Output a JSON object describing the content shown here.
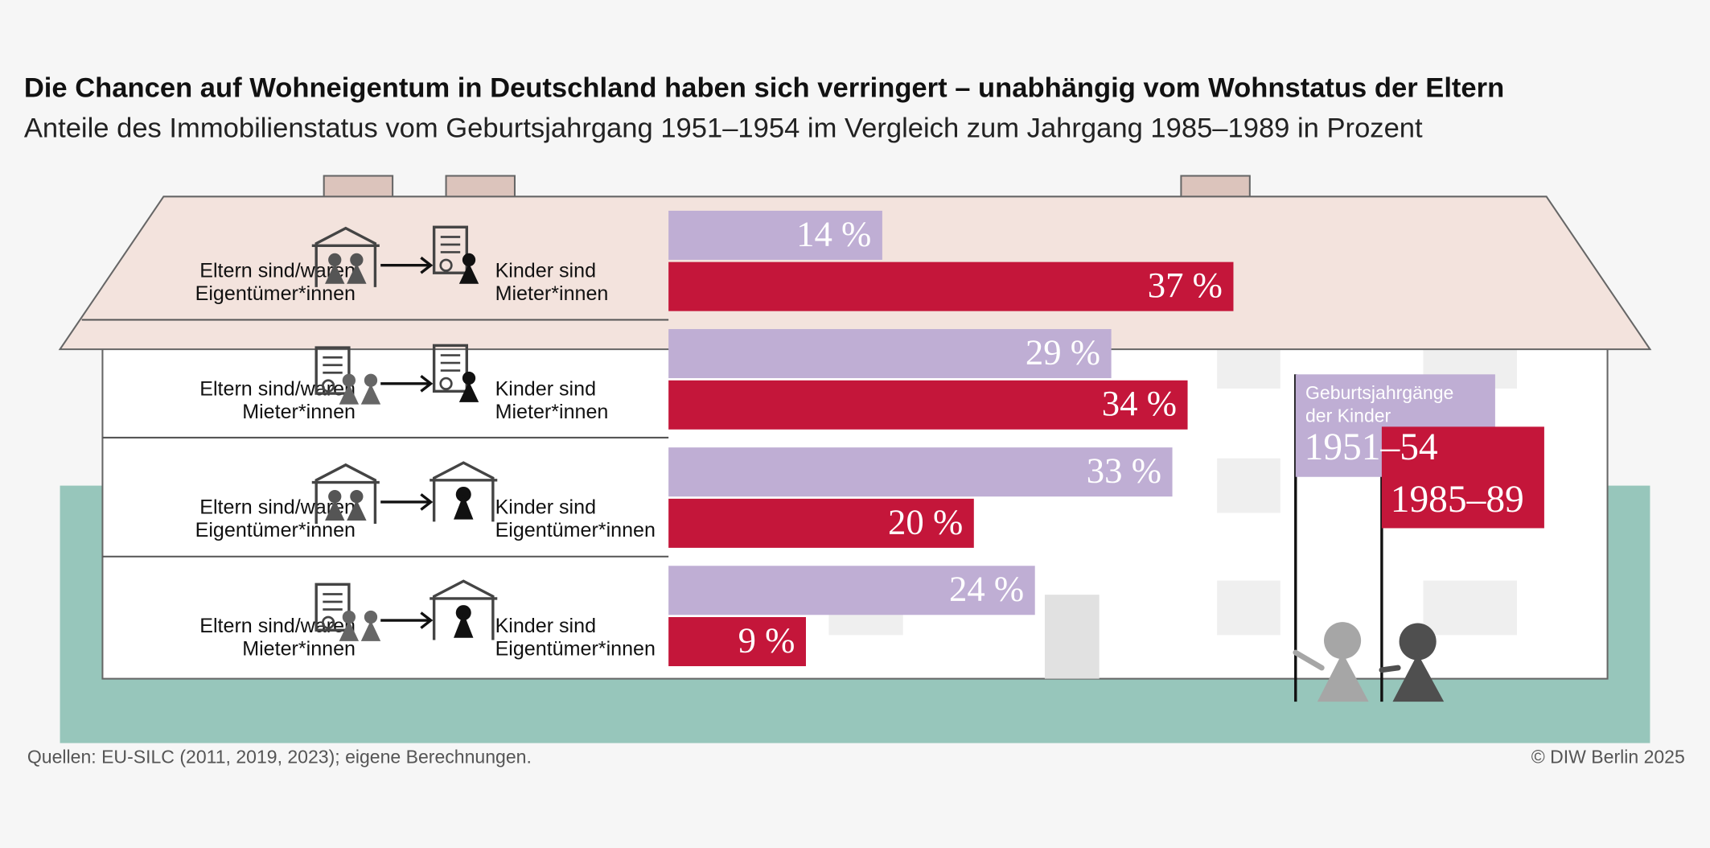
{
  "chart_data": {
    "type": "bar",
    "title": "Die Chancen auf Wohneigentum in Deutschland haben sich verringert – unabhängig vom Wohnstatus der Eltern",
    "subtitle": "Anteile des Immobilienstatus vom Geburtsjahrgang 1951–1954 im Vergleich zum Jahrgang 1985–1989 in Prozent",
    "categories": [
      {
        "parents": [
          "Eltern sind/waren",
          "Eigentümer*innen"
        ],
        "children": [
          "Kinder sind",
          "Mieter*innen"
        ]
      },
      {
        "parents": [
          "Eltern sind/waren",
          "Mieter*innen"
        ],
        "children": [
          "Kinder sind",
          "Mieter*innen"
        ]
      },
      {
        "parents": [
          "Eltern sind/waren",
          "Eigentümer*innen"
        ],
        "children": [
          "Kinder sind",
          "Eigentümer*innen"
        ]
      },
      {
        "parents": [
          "Eltern sind/waren",
          "Mieter*innen"
        ],
        "children": [
          "Kinder sind",
          "Eigentümer*innen"
        ]
      }
    ],
    "legend_title": [
      "Geburtsjahrgänge",
      "der Kinder"
    ],
    "series": [
      {
        "name": "1951–54",
        "color": "#bfaed4",
        "values": [
          14,
          29,
          33,
          24
        ],
        "value_labels": [
          "14 %",
          "29 %",
          "33 %",
          "24 %"
        ]
      },
      {
        "name": "1985–89",
        "color": "#c4163a",
        "values": [
          37,
          34,
          20,
          9
        ],
        "value_labels": [
          "37 %",
          "34 %",
          "20 %",
          "9 %"
        ]
      }
    ],
    "source": "Quellen: EU-SILC (2011, 2019, 2023); eigene Berechnungen.",
    "copyright": "© DIW Berlin 2025"
  }
}
